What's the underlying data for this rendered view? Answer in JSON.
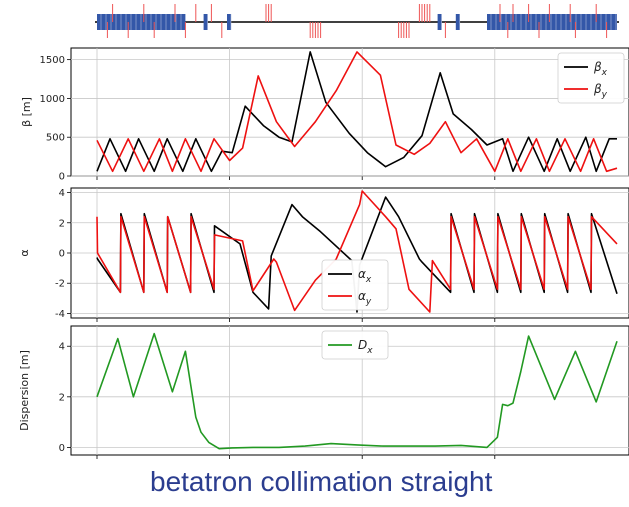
{
  "caption": "betatron collimation straight",
  "colors": {
    "beta_x": "#000000",
    "beta_y": "#ee1111",
    "dispersion": "#229922",
    "dipole": "#3357a8",
    "quad": "#ee5555"
  },
  "lattice": {
    "dipole_blocks": [
      [
        0,
        0.17
      ],
      [
        0.205,
        0.213
      ],
      [
        0.25,
        0.258
      ],
      [
        0.655,
        0.663
      ],
      [
        0.69,
        0.698
      ],
      [
        0.75,
        1.0
      ]
    ],
    "quad_up": [
      0.03,
      0.09,
      0.15,
      0.19,
      0.22,
      0.325,
      0.33,
      0.335,
      0.62,
      0.625,
      0.63,
      0.635,
      0.64,
      0.775,
      0.8,
      0.83,
      0.87,
      0.91,
      0.96
    ],
    "quad_down": [
      0.02,
      0.06,
      0.11,
      0.17,
      0.24,
      0.41,
      0.415,
      0.42,
      0.425,
      0.43,
      0.58,
      0.585,
      0.59,
      0.595,
      0.6,
      0.67,
      0.79,
      0.85,
      0.92,
      0.98
    ]
  },
  "chart_data": [
    {
      "type": "line",
      "ylabel": "β [m]",
      "xlim": [
        0,
        1
      ],
      "ylim": [
        0,
        1650
      ],
      "yticks": [
        0,
        500,
        1000,
        1500
      ],
      "legend_position": "top-right",
      "series": [
        {
          "name": "βx",
          "label_base": "β",
          "label_sub": "x",
          "color": "#000000",
          "x": [
            0,
            0.025,
            0.055,
            0.08,
            0.11,
            0.135,
            0.165,
            0.19,
            0.22,
            0.24,
            0.26,
            0.285,
            0.32,
            0.35,
            0.375,
            0.41,
            0.44,
            0.485,
            0.52,
            0.555,
            0.59,
            0.625,
            0.66,
            0.685,
            0.72,
            0.75,
            0.78,
            0.8,
            0.83,
            0.86,
            0.885,
            0.91,
            0.94,
            0.96,
            0.985,
            1.0
          ],
          "y": [
            60,
            480,
            60,
            480,
            60,
            480,
            60,
            480,
            60,
            320,
            300,
            900,
            650,
            500,
            440,
            1600,
            950,
            550,
            300,
            120,
            240,
            520,
            1330,
            800,
            600,
            400,
            480,
            60,
            500,
            60,
            480,
            60,
            500,
            60,
            480,
            480
          ]
        },
        {
          "name": "βy",
          "label_base": "β",
          "label_sub": "y",
          "color": "#ee1111",
          "x": [
            0,
            0.03,
            0.06,
            0.09,
            0.12,
            0.145,
            0.17,
            0.2,
            0.225,
            0.255,
            0.28,
            0.31,
            0.345,
            0.38,
            0.42,
            0.46,
            0.5,
            0.545,
            0.575,
            0.61,
            0.64,
            0.67,
            0.7,
            0.73,
            0.765,
            0.79,
            0.815,
            0.845,
            0.87,
            0.9,
            0.93,
            0.955,
            0.98,
            1.0
          ],
          "y": [
            460,
            60,
            480,
            60,
            480,
            60,
            480,
            60,
            480,
            200,
            360,
            1290,
            700,
            380,
            700,
            1100,
            1600,
            1300,
            400,
            280,
            420,
            700,
            300,
            480,
            60,
            480,
            60,
            480,
            60,
            480,
            60,
            480,
            60,
            100
          ]
        }
      ]
    },
    {
      "type": "line",
      "ylabel": "α",
      "xlim": [
        0,
        1
      ],
      "ylim": [
        -4.3,
        4.3
      ],
      "yticks": [
        -4,
        -2,
        0,
        2,
        4
      ],
      "legend_position": "center",
      "series": [
        {
          "name": "αx",
          "label_base": "α",
          "label_sub": "x",
          "color": "#000000",
          "x": [
            0,
            0.001,
            0.045,
            0.046,
            0.09,
            0.091,
            0.135,
            0.136,
            0.18,
            0.181,
            0.225,
            0.226,
            0.275,
            0.3,
            0.33,
            0.335,
            0.375,
            0.395,
            0.43,
            0.49,
            0.5,
            0.505,
            0.555,
            0.58,
            0.62,
            0.625,
            0.68,
            0.681,
            0.725,
            0.726,
            0.77,
            0.771,
            0.815,
            0.816,
            0.86,
            0.861,
            0.905,
            0.906,
            0.95,
            0.951,
            1.0
          ],
          "y": [
            -0.3,
            -0.4,
            -2.6,
            2.6,
            -2.6,
            2.6,
            -2.6,
            2.4,
            -2.6,
            2.6,
            -2.6,
            1.8,
            0.6,
            -2.6,
            -3.7,
            -0.2,
            3.2,
            2.4,
            1.4,
            -0.5,
            -3.9,
            -0.8,
            3.7,
            2.4,
            -0.4,
            -0.6,
            -2.6,
            2.6,
            -2.6,
            2.6,
            -2.6,
            2.6,
            -2.6,
            2.6,
            -2.6,
            2.6,
            -2.6,
            2.6,
            -2.6,
            2.6,
            -2.7
          ]
        },
        {
          "name": "αy",
          "label_base": "α",
          "label_sub": "y",
          "color": "#ee1111",
          "x": [
            0,
            0.001,
            0.045,
            0.046,
            0.09,
            0.091,
            0.135,
            0.136,
            0.18,
            0.181,
            0.225,
            0.226,
            0.28,
            0.3,
            0.34,
            0.345,
            0.38,
            0.42,
            0.46,
            0.505,
            0.51,
            0.555,
            0.575,
            0.6,
            0.64,
            0.645,
            0.68,
            0.681,
            0.725,
            0.726,
            0.77,
            0.771,
            0.815,
            0.816,
            0.86,
            0.861,
            0.905,
            0.906,
            0.95,
            0.951,
            1.0
          ],
          "y": [
            2.4,
            0,
            -2.6,
            2.4,
            -2.6,
            2.4,
            -2.6,
            2.4,
            -2.6,
            2.4,
            -2.4,
            1.2,
            0.8,
            -2.5,
            -0.4,
            -0.6,
            -3.8,
            -1.8,
            -0.4,
            3.2,
            4.1,
            2.4,
            1.6,
            -2.4,
            -3.9,
            -0.5,
            -2.4,
            2.4,
            -2.4,
            2.4,
            -2.4,
            2.4,
            -2.4,
            2.4,
            -2.4,
            2.4,
            -2.4,
            2.4,
            -2.4,
            2.4,
            0.6
          ]
        }
      ]
    },
    {
      "type": "line",
      "ylabel": "Dispersion [m]",
      "xlim": [
        0,
        1
      ],
      "ylim": [
        -0.3,
        4.8
      ],
      "yticks": [
        0,
        2,
        4
      ],
      "legend_position": "top-center",
      "series": [
        {
          "name": "Dx",
          "label_base": "D",
          "label_sub": "x",
          "color": "#229922",
          "x": [
            0,
            0.04,
            0.07,
            0.11,
            0.145,
            0.17,
            0.19,
            0.2,
            0.215,
            0.235,
            0.26,
            0.3,
            0.35,
            0.4,
            0.45,
            0.5,
            0.55,
            0.6,
            0.65,
            0.7,
            0.75,
            0.77,
            0.78,
            0.79,
            0.8,
            0.815,
            0.83,
            0.88,
            0.92,
            0.96,
            1.0
          ],
          "y": [
            2,
            4.3,
            2,
            4.5,
            2.2,
            3.8,
            1.2,
            0.6,
            0.2,
            -0.05,
            -0.02,
            0,
            0,
            0.05,
            0.15,
            0.1,
            0.05,
            0.05,
            0.05,
            0.08,
            0,
            0.4,
            1.7,
            1.65,
            1.75,
            3,
            4.4,
            1.9,
            3.8,
            1.8,
            4.2
          ]
        }
      ]
    }
  ]
}
